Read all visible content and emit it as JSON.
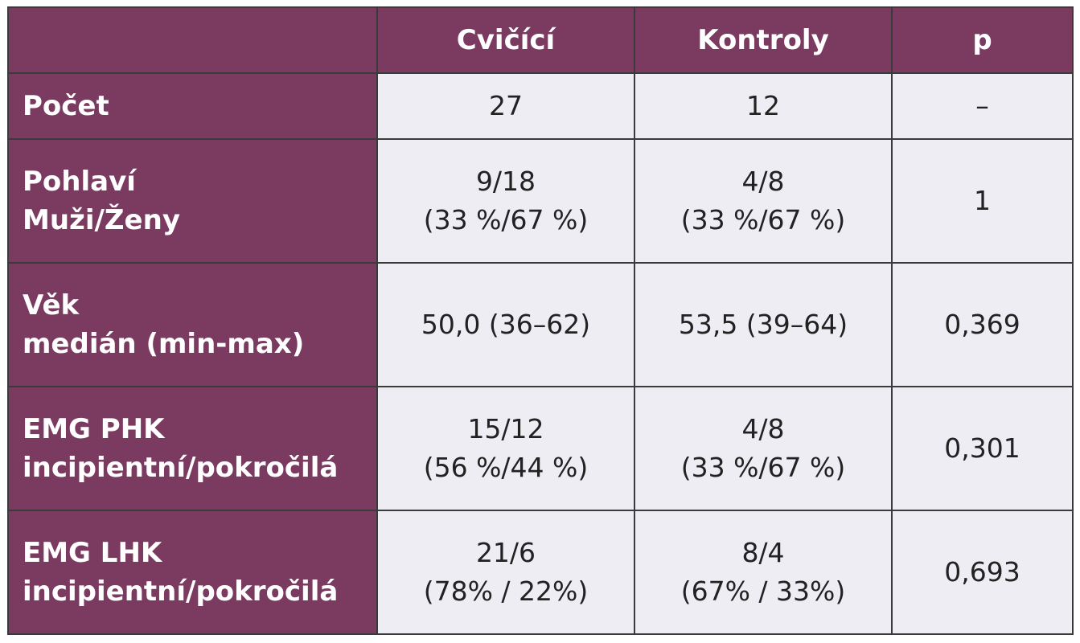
{
  "table": {
    "columns": [
      "",
      "Cvičící",
      "Kontroly",
      "p"
    ],
    "rows": [
      {
        "label": [
          "Počet"
        ],
        "cvicici": [
          "27"
        ],
        "kontroly": [
          "12"
        ],
        "p": "–"
      },
      {
        "label": [
          "Pohlaví",
          "Muži/Ženy"
        ],
        "cvicici": [
          "9/18",
          "(33 %/67 %)"
        ],
        "kontroly": [
          "4/8",
          "(33 %/67 %)"
        ],
        "p": "1"
      },
      {
        "label": [
          "Věk",
          "medián (min-max)"
        ],
        "cvicici": [
          "50,0 (36–62)"
        ],
        "kontroly": [
          "53,5 (39–64)"
        ],
        "p": "0,369"
      },
      {
        "label": [
          "EMG PHK",
          "incipientní/pokročilá"
        ],
        "cvicici": [
          "15/12",
          "(56 %/44 %)"
        ],
        "kontroly": [
          "4/8",
          "(33 %/67 %)"
        ],
        "p": "0,301"
      },
      {
        "label": [
          "EMG LHK",
          "incipientní/pokročilá"
        ],
        "cvicici": [
          "21/6",
          "(78% / 22%)"
        ],
        "kontroly": [
          "8/4",
          "(67% / 33%)"
        ],
        "p": "0,693"
      }
    ]
  },
  "colors": {
    "header_bg": "#7b3a60",
    "cell_bg": "#eeedf3",
    "border": "#3a3a3a"
  }
}
